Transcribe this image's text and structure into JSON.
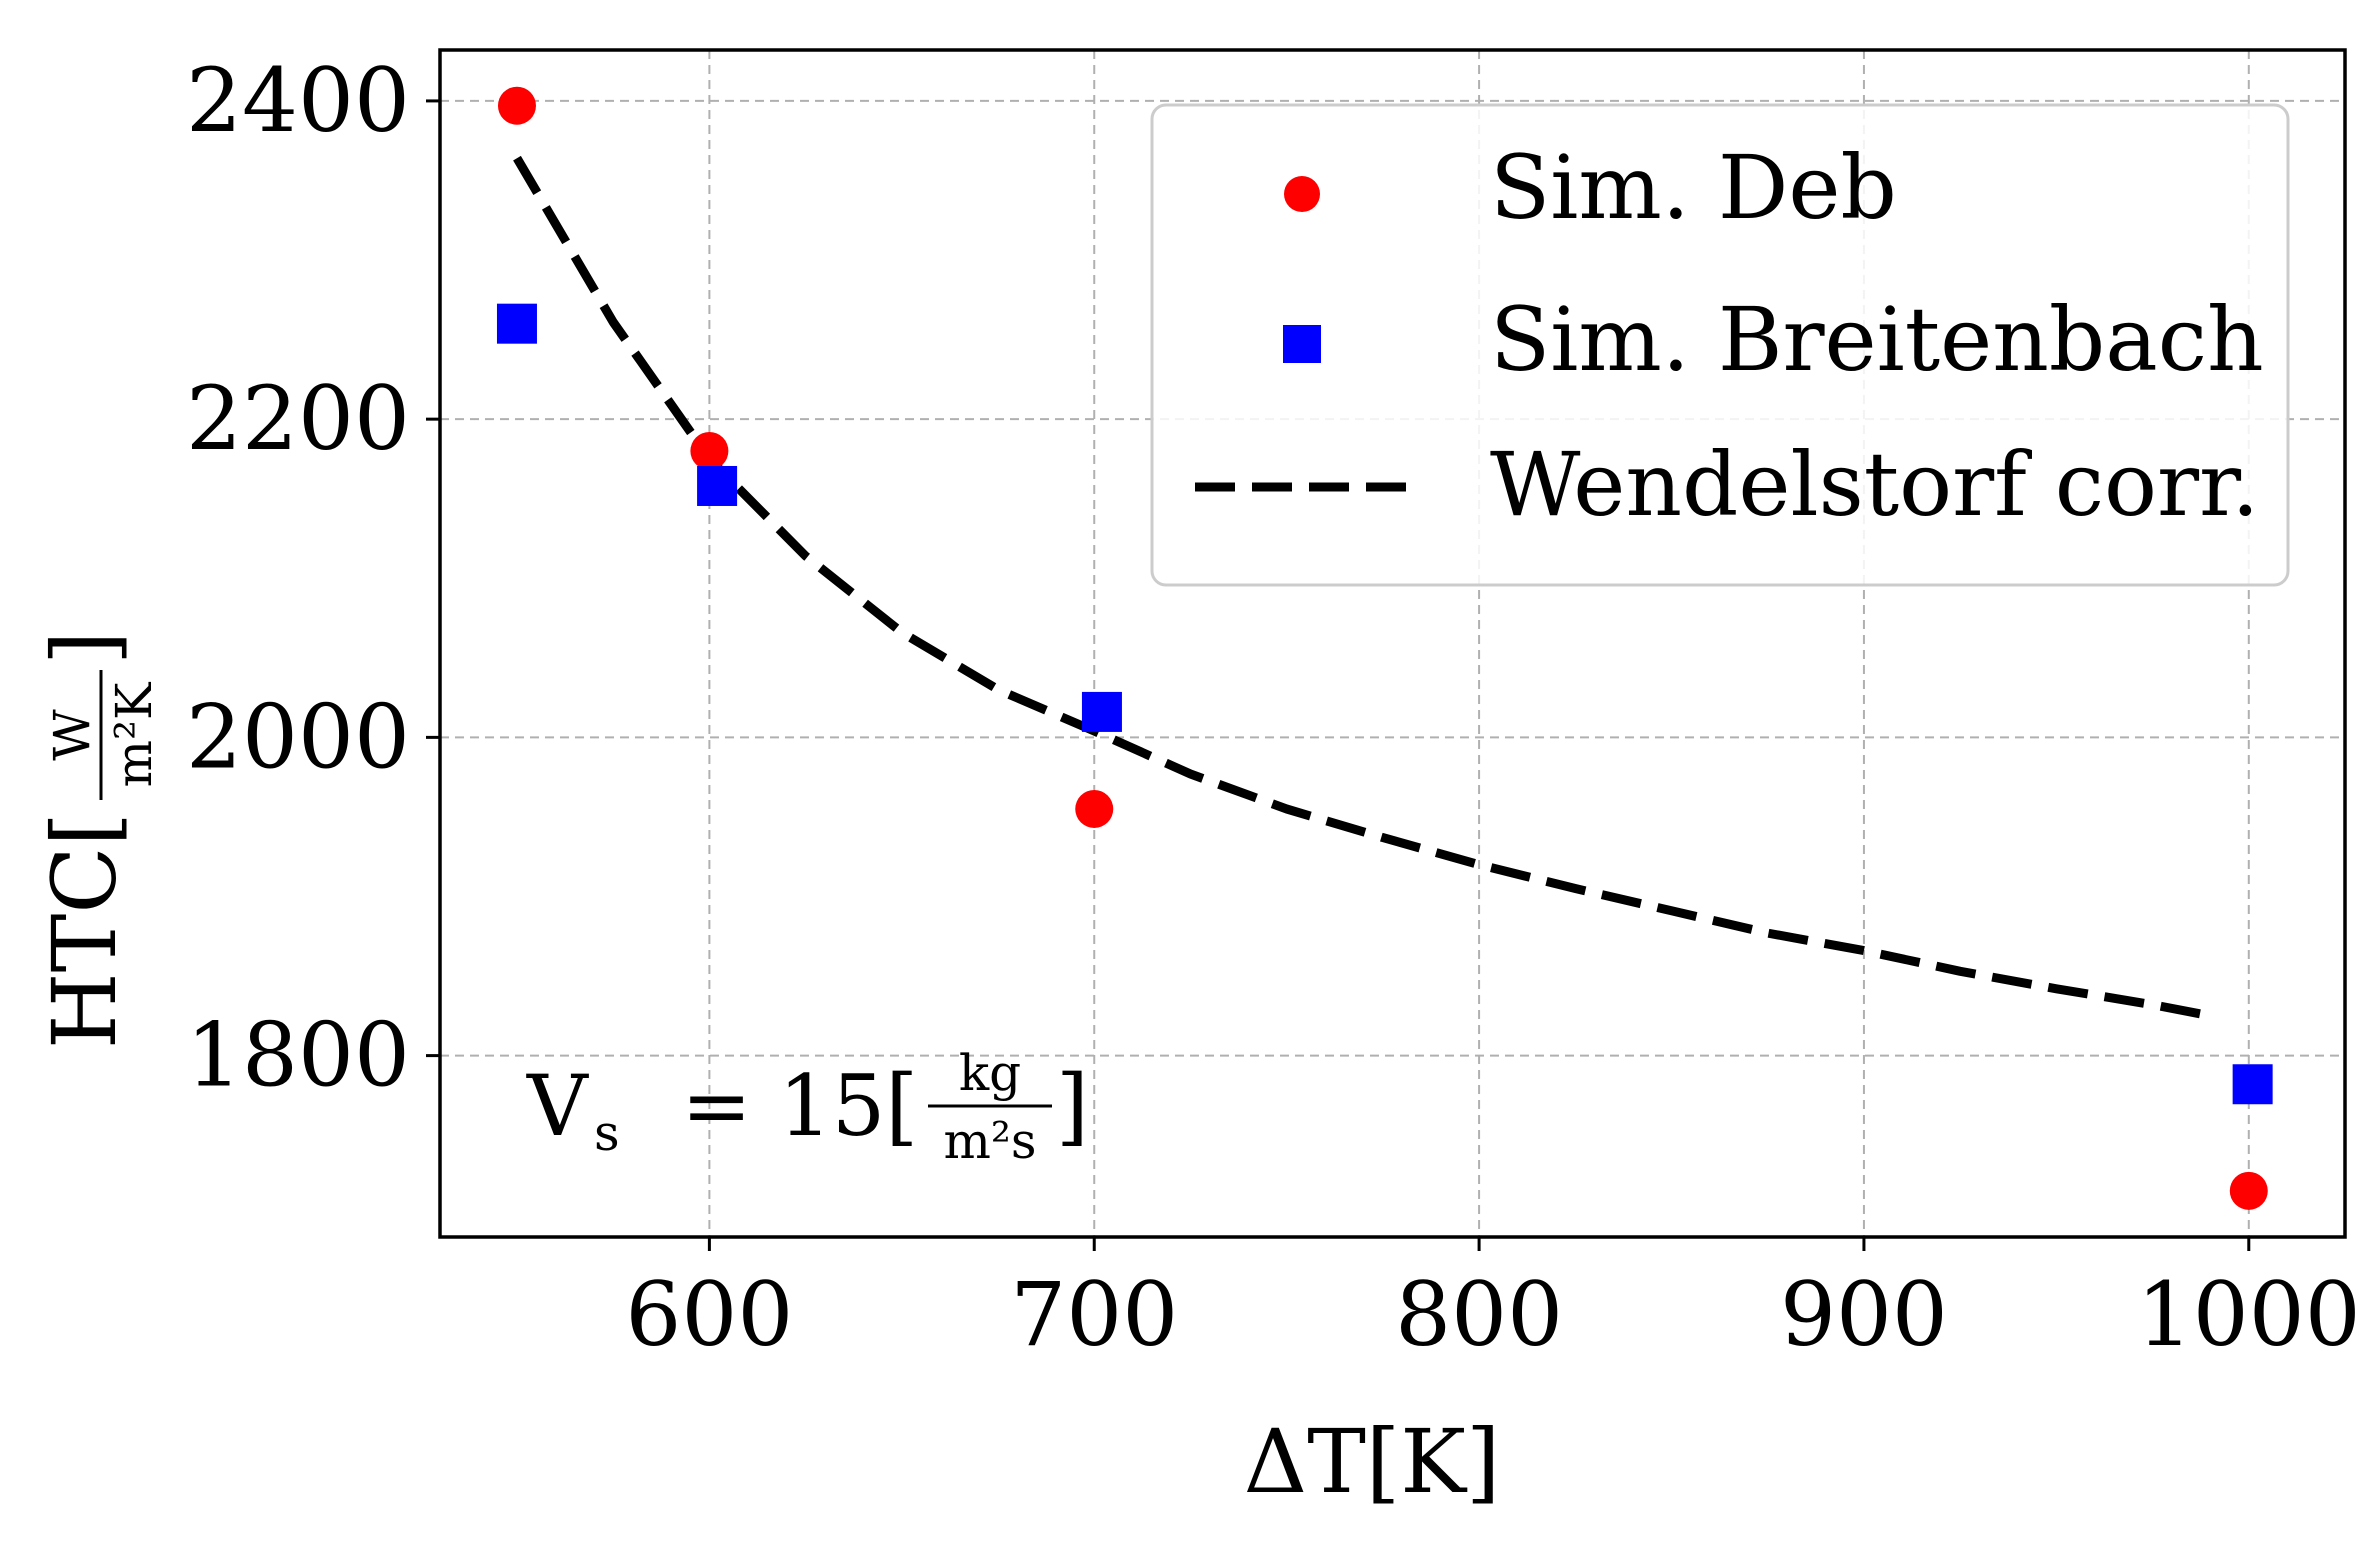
{
  "chart_data": {
    "type": "scatter",
    "title": "",
    "xlabel": "ΔT[K]",
    "ylabel": {
      "prefix": "HTC[",
      "numerator": "W",
      "denominator": "m²K",
      "suffix": "]"
    },
    "xlim": [
      530,
      1025
    ],
    "ylim": [
      1686,
      2432
    ],
    "xticks": [
      600,
      700,
      800,
      900,
      1000
    ],
    "yticks": [
      1800,
      2000,
      2200,
      2400
    ],
    "xtick_labels": [
      "600",
      "700",
      "800",
      "900",
      "1000"
    ],
    "ytick_labels": [
      "1800",
      "2000",
      "2200",
      "2400"
    ],
    "grid": true,
    "grid_style": "dashed",
    "legend_position": "top-right",
    "series": [
      {
        "name": "Sim. Deb",
        "kind": "scatter",
        "marker": "circle",
        "color": "#ff0000",
        "points": [
          {
            "x": 550,
            "y": 2397
          },
          {
            "x": 600,
            "y": 2180
          },
          {
            "x": 700,
            "y": 1955
          },
          {
            "x": 1000,
            "y": 1715
          }
        ]
      },
      {
        "name": "Sim. Breitenbach",
        "kind": "scatter",
        "marker": "square",
        "color": "#0000ff",
        "points": [
          {
            "x": 550,
            "y": 2260
          },
          {
            "x": 602,
            "y": 2158
          },
          {
            "x": 702,
            "y": 2016
          },
          {
            "x": 1001,
            "y": 1782
          }
        ]
      },
      {
        "name": "Wendelstorf corr.",
        "kind": "line",
        "style": "dashed",
        "color": "#000000",
        "points": [
          {
            "x": 550,
            "y": 2364
          },
          {
            "x": 575,
            "y": 2261
          },
          {
            "x": 600,
            "y": 2175
          },
          {
            "x": 625,
            "y": 2114
          },
          {
            "x": 650,
            "y": 2066
          },
          {
            "x": 675,
            "y": 2030
          },
          {
            "x": 700,
            "y": 2004
          },
          {
            "x": 725,
            "y": 1977
          },
          {
            "x": 750,
            "y": 1955
          },
          {
            "x": 775,
            "y": 1937
          },
          {
            "x": 800,
            "y": 1920
          },
          {
            "x": 825,
            "y": 1905
          },
          {
            "x": 850,
            "y": 1891
          },
          {
            "x": 875,
            "y": 1877
          },
          {
            "x": 900,
            "y": 1866
          },
          {
            "x": 925,
            "y": 1853
          },
          {
            "x": 950,
            "y": 1842
          },
          {
            "x": 975,
            "y": 1832
          },
          {
            "x": 990,
            "y": 1825
          }
        ]
      }
    ],
    "annotation": {
      "prefix": "V",
      "subscript": "s",
      "middle": "  = 15[",
      "numerator": "kg",
      "denominator": "m²s",
      "suffix": "]"
    }
  }
}
